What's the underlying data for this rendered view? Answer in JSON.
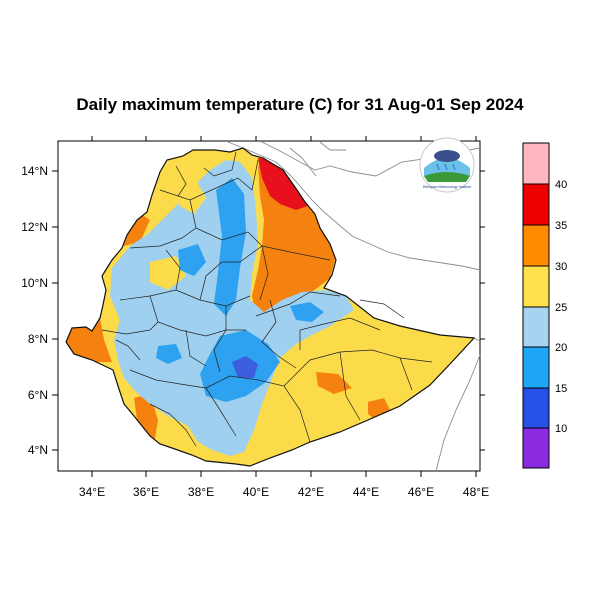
{
  "title": "Daily maximum temperature (C) for 31 Aug-01 Sep 2024",
  "map": {
    "x_ticks": [
      "34°E",
      "36°E",
      "38°E",
      "40°E",
      "42°E",
      "44°E",
      "46°E",
      "48°E"
    ],
    "y_ticks": [
      "14°N",
      "12°N",
      "10°N",
      "8°N",
      "6°N",
      "4°N"
    ]
  },
  "legend": {
    "labels": [
      "40",
      "35",
      "30",
      "25",
      "20",
      "15",
      "10"
    ],
    "colors": [
      "#ffb6c1",
      "#ee0000",
      "#ff8c00",
      "#ffe14d",
      "#a8d3f0",
      "#1ea7f5",
      "#2650e8",
      "#8a2be2"
    ]
  },
  "logo": {
    "caption": "Ethiopian Meteorology Institute"
  },
  "colors": {
    "orange": "#f5820f",
    "yellow": "#fbdb4a",
    "light_blue": "#9fd0ef",
    "blue": "#2ea2f0",
    "dark_blue": "#3e5ee0",
    "red": "#e8101c",
    "boundary": "#111111",
    "coast": "#8c8c8c"
  }
}
